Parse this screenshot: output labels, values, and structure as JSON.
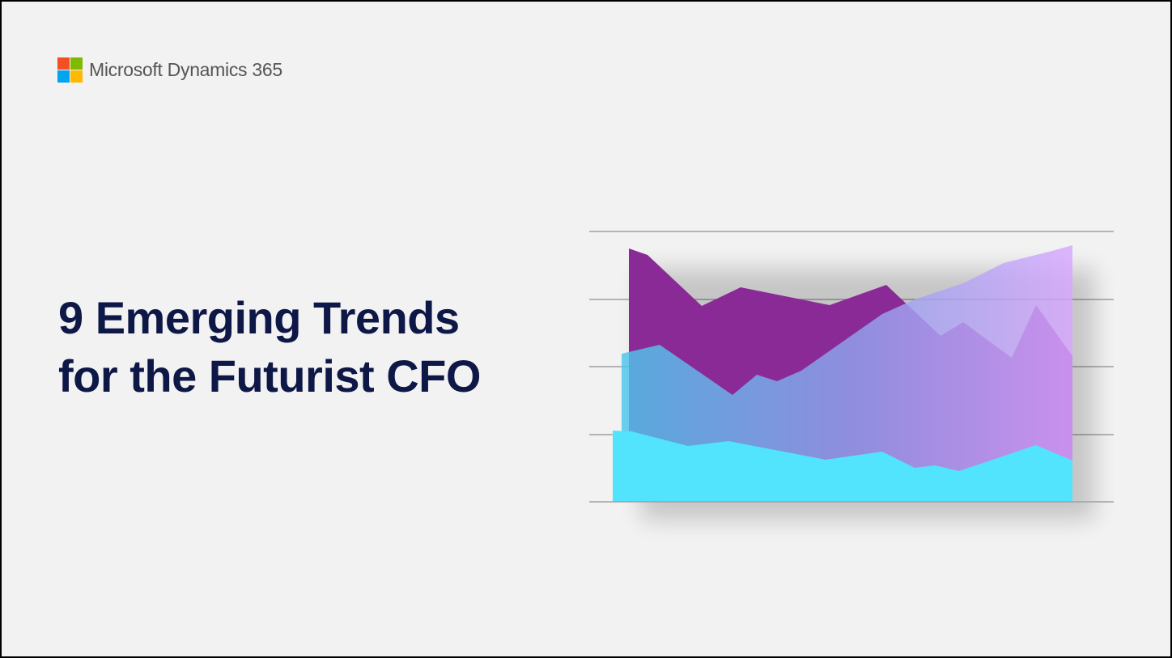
{
  "header": {
    "brand": "Microsoft Dynamics 365"
  },
  "title": {
    "lines": [
      "9 Emerging Trends",
      "for the Futurist CFO"
    ]
  }
}
